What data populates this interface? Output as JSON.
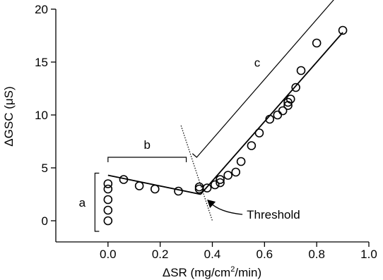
{
  "chart_data": {
    "type": "scatter",
    "xlabel_prefix": "ΔSR (mg/cm",
    "xlabel_sup": "2",
    "xlabel_suffix": "/min)",
    "ylabel_prefix": "ΔGSC (",
    "ylabel_mu": "μ",
    "ylabel_suffix": "S)",
    "xlim": [
      -0.2,
      1.0
    ],
    "ylim": [
      -2,
      20
    ],
    "xticks": [
      0.0,
      0.2,
      0.4,
      0.6,
      0.8,
      1.0
    ],
    "xtick_labels": [
      "0.0",
      "0.2",
      "0.4",
      "0.6",
      "0.8",
      "1.0"
    ],
    "yticks": [
      0,
      5,
      10,
      15,
      20
    ],
    "ytick_labels": [
      "0",
      "5",
      "10",
      "15",
      "20"
    ],
    "grid": false,
    "points": [
      {
        "x": 0.0,
        "y": 0.0
      },
      {
        "x": 0.0,
        "y": 1.0
      },
      {
        "x": 0.0,
        "y": 2.0
      },
      {
        "x": 0.0,
        "y": 3.0
      },
      {
        "x": 0.0,
        "y": 3.5
      },
      {
        "x": 0.06,
        "y": 3.9
      },
      {
        "x": 0.12,
        "y": 3.3
      },
      {
        "x": 0.18,
        "y": 3.0
      },
      {
        "x": 0.27,
        "y": 2.8
      },
      {
        "x": 0.35,
        "y": 3.0
      },
      {
        "x": 0.35,
        "y": 3.2
      },
      {
        "x": 0.38,
        "y": 3.1
      },
      {
        "x": 0.41,
        "y": 3.4
      },
      {
        "x": 0.43,
        "y": 3.6
      },
      {
        "x": 0.43,
        "y": 3.9
      },
      {
        "x": 0.46,
        "y": 4.3
      },
      {
        "x": 0.49,
        "y": 4.6
      },
      {
        "x": 0.51,
        "y": 5.6
      },
      {
        "x": 0.55,
        "y": 7.1
      },
      {
        "x": 0.58,
        "y": 8.3
      },
      {
        "x": 0.62,
        "y": 9.6
      },
      {
        "x": 0.65,
        "y": 10.0
      },
      {
        "x": 0.67,
        "y": 10.4
      },
      {
        "x": 0.69,
        "y": 10.9
      },
      {
        "x": 0.69,
        "y": 11.2
      },
      {
        "x": 0.7,
        "y": 11.5
      },
      {
        "x": 0.72,
        "y": 12.6
      },
      {
        "x": 0.74,
        "y": 14.2
      },
      {
        "x": 0.8,
        "y": 16.8
      },
      {
        "x": 0.9,
        "y": 18.0
      }
    ],
    "fit_lines": [
      {
        "x": [
          0.0,
          0.355
        ],
        "y": [
          4.3,
          2.5
        ]
      },
      {
        "x": [
          0.355,
          0.9
        ],
        "y": [
          2.5,
          17.8
        ]
      }
    ],
    "threshold_line": {
      "x": [
        0.28,
        0.4
      ],
      "y": [
        9.0,
        0.0
      ]
    },
    "threshold_label": "Threshold",
    "threshold_point": {
      "x": 0.38,
      "y": 2.0
    },
    "region_labels": {
      "a": "a",
      "b": "b",
      "c": "c"
    },
    "region_a": {
      "x": -0.05,
      "y_range": [
        -1.0,
        4.5
      ]
    },
    "region_b": {
      "x_range": [
        0.0,
        0.3
      ],
      "y": 6.0
    },
    "region_c": {
      "x_start": [
        0.34,
        6.0
      ],
      "x_end": [
        0.88,
        21.3
      ]
    }
  }
}
